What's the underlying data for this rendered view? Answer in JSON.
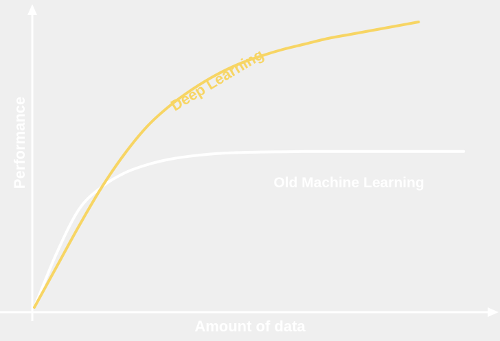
{
  "chart_data": {
    "type": "line",
    "title": "",
    "xlabel": "Amount of data",
    "ylabel": "Performance",
    "xlim": [
      0,
      100
    ],
    "ylim": [
      0,
      100
    ],
    "grid": false,
    "series": [
      {
        "name": "Deep Learning",
        "color": "#f7d564",
        "x": [
          0,
          5,
          10,
          15,
          20,
          25,
          30,
          35,
          40,
          45,
          50,
          55,
          60,
          65,
          70,
          75,
          80,
          85
        ],
        "y": [
          0,
          15,
          30,
          44,
          56,
          66,
          73.5,
          79.5,
          84.5,
          88.5,
          91.5,
          94,
          96,
          98,
          99.5,
          101,
          102.5,
          104
        ]
      },
      {
        "name": "Old Machine Learning",
        "color": "#ffffff",
        "x": [
          0,
          5,
          10,
          15,
          20,
          25,
          30,
          35,
          40,
          45,
          50,
          55,
          60,
          65,
          70,
          75,
          80,
          85,
          90,
          95
        ],
        "y": [
          0,
          20,
          36,
          44,
          49,
          52,
          54,
          55.2,
          56,
          56.4,
          56.6,
          56.7,
          56.8,
          56.8,
          56.8,
          56.8,
          56.8,
          56.8,
          56.8,
          56.8
        ]
      }
    ]
  }
}
